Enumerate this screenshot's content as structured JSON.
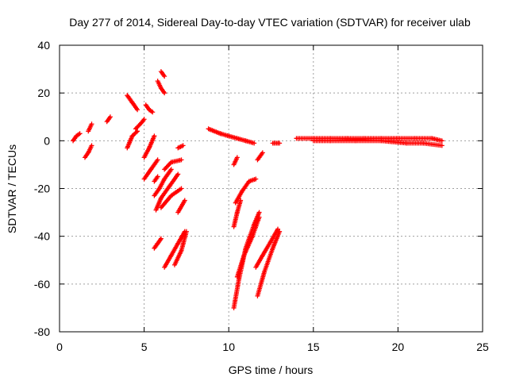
{
  "chart_data": {
    "type": "scatter",
    "title": "Day 277 of 2014, Sidereal Day-to-day VTEC variation (SDTVAR) for receiver ulab",
    "xlabel": "GPS time / hours",
    "ylabel": "SDTVAR / TECUs",
    "xlim": [
      0,
      25
    ],
    "ylim": [
      -80,
      40
    ],
    "xticks": [
      0,
      5,
      10,
      15,
      20,
      25
    ],
    "yticks": [
      -80,
      -60,
      -40,
      -20,
      0,
      20,
      40
    ],
    "grid": true,
    "marker": "+",
    "color": "#ff0000",
    "segments": [
      {
        "x": [
          0.8,
          1.0,
          1.2
        ],
        "y": [
          0,
          2,
          3
        ]
      },
      {
        "x": [
          1.5,
          1.7,
          1.9
        ],
        "y": [
          -7,
          -5,
          -2
        ]
      },
      {
        "x": [
          1.7,
          1.9
        ],
        "y": [
          4,
          7
        ]
      },
      {
        "x": [
          2.8,
          3.0
        ],
        "y": [
          8,
          10
        ]
      },
      {
        "x": [
          4.0,
          4.3,
          4.6
        ],
        "y": [
          -3,
          2,
          4
        ]
      },
      {
        "x": [
          4.0,
          4.3,
          4.6
        ],
        "y": [
          19,
          16,
          13
        ]
      },
      {
        "x": [
          4.5,
          4.9,
          5.0
        ],
        "y": [
          5,
          8,
          9
        ]
      },
      {
        "x": [
          5.1,
          5.3,
          5.5
        ],
        "y": [
          15,
          13,
          12
        ]
      },
      {
        "x": [
          5.8,
          6.0,
          6.2
        ],
        "y": [
          25,
          22,
          20
        ]
      },
      {
        "x": [
          6.0,
          6.2
        ],
        "y": [
          29,
          27
        ]
      },
      {
        "x": [
          5.0,
          5.4,
          5.8
        ],
        "y": [
          -16,
          -12,
          -8
        ]
      },
      {
        "x": [
          5.6,
          5.8
        ],
        "y": [
          -17,
          -15
        ]
      },
      {
        "x": [
          5.0,
          5.3,
          5.6
        ],
        "y": [
          -7,
          -3,
          2
        ]
      },
      {
        "x": [
          5.6,
          5.9,
          6.2,
          6.6
        ],
        "y": [
          -23,
          -20,
          -16,
          -12
        ]
      },
      {
        "x": [
          5.7,
          6.0,
          6.5,
          7.0
        ],
        "y": [
          -29,
          -24,
          -19,
          -14
        ]
      },
      {
        "x": [
          6.0,
          6.6,
          7.2
        ],
        "y": [
          -28,
          -23,
          -20
        ]
      },
      {
        "x": [
          6.2,
          6.6,
          7.2
        ],
        "y": [
          -12,
          -9,
          -8
        ]
      },
      {
        "x": [
          7.0,
          7.4
        ],
        "y": [
          -30,
          -25
        ]
      },
      {
        "x": [
          7.0,
          7.3
        ],
        "y": [
          -3,
          -2
        ]
      },
      {
        "x": [
          5.6,
          5.8,
          6.0
        ],
        "y": [
          -45,
          -43,
          -41
        ]
      },
      {
        "x": [
          6.2,
          6.6,
          7.0,
          7.4
        ],
        "y": [
          -53,
          -48,
          -43,
          -38
        ]
      },
      {
        "x": [
          6.8,
          7.2,
          7.5
        ],
        "y": [
          -52,
          -46,
          -38
        ]
      },
      {
        "x": [
          8.8,
          9.5,
          10.0,
          10.5,
          11.0,
          11.5
        ],
        "y": [
          5,
          3,
          2,
          1,
          0,
          -1
        ]
      },
      {
        "x": [
          10.3,
          10.5,
          10.7
        ],
        "y": [
          -36,
          -30,
          -25
        ]
      },
      {
        "x": [
          10.3,
          10.5
        ],
        "y": [
          -10,
          -7
        ]
      },
      {
        "x": [
          10.4,
          10.8,
          11.2,
          11.6
        ],
        "y": [
          -26,
          -21,
          -17,
          -16
        ]
      },
      {
        "x": [
          10.3,
          10.6,
          11.0,
          11.5,
          11.8
        ],
        "y": [
          -70,
          -58,
          -45,
          -35,
          -30
        ]
      },
      {
        "x": [
          10.5,
          10.9,
          11.4,
          11.8
        ],
        "y": [
          -57,
          -48,
          -40,
          -32
        ]
      },
      {
        "x": [
          11.7,
          12.0
        ],
        "y": [
          -8,
          -5
        ]
      },
      {
        "x": [
          11.7,
          12.1,
          12.6,
          13.0
        ],
        "y": [
          -65,
          -55,
          -45,
          -38
        ]
      },
      {
        "x": [
          11.6,
          12.0,
          12.5,
          12.9
        ],
        "y": [
          -53,
          -48,
          -42,
          -37
        ]
      },
      {
        "x": [
          12.6,
          13.0
        ],
        "y": [
          -1,
          -1
        ]
      },
      {
        "x": [
          14.0,
          15.0,
          16.0,
          17.0,
          18.0,
          19.0,
          20.0,
          21.0,
          22.0,
          22.6
        ],
        "y": [
          1,
          1,
          1,
          1,
          1,
          1,
          1,
          1,
          1,
          0
        ]
      },
      {
        "x": [
          15.0,
          16.0,
          17.5,
          19.0,
          20.5,
          21.5,
          22.6
        ],
        "y": [
          0,
          0,
          0,
          0,
          -1,
          -1,
          -2
        ]
      }
    ]
  }
}
